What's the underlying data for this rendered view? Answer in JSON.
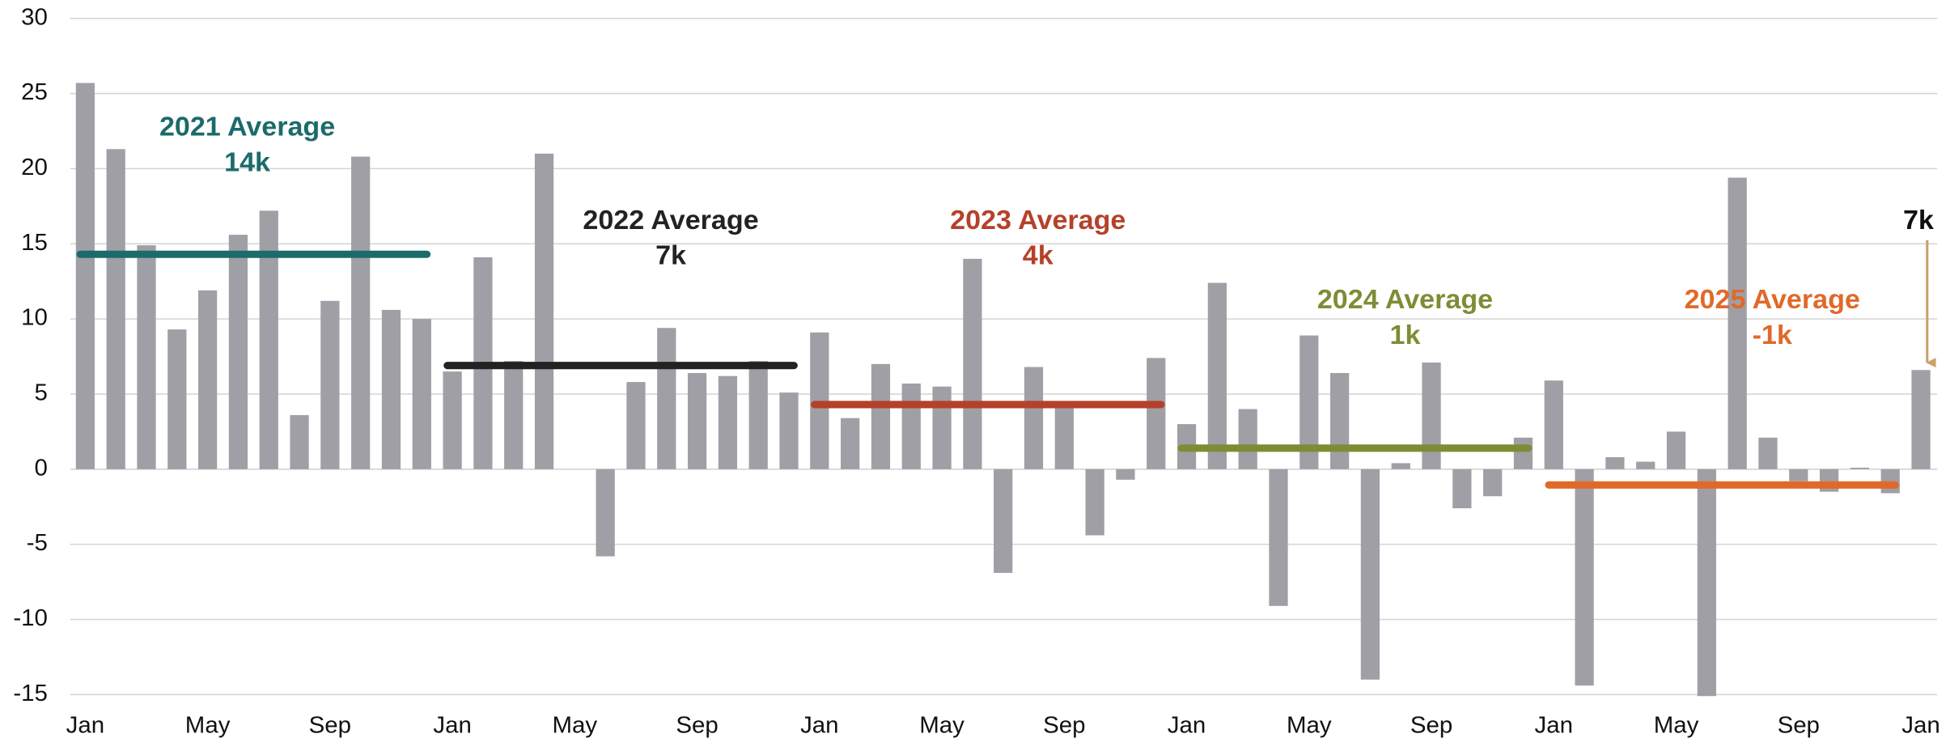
{
  "chart_data": {
    "type": "bar",
    "categories": [
      "Jan",
      null,
      null,
      null,
      "May",
      null,
      null,
      null,
      "Sep",
      null,
      null,
      null,
      "Jan",
      null,
      null,
      null,
      "May",
      null,
      null,
      null,
      "Sep",
      null,
      null,
      null,
      "Jan",
      null,
      null,
      null,
      "May",
      null,
      null,
      null,
      "Sep",
      null,
      null,
      null,
      "Jan",
      null,
      null,
      null,
      "May",
      null,
      null,
      null,
      "Sep",
      null,
      null,
      null,
      "Jan",
      null,
      null,
      null,
      "May",
      null,
      null,
      null,
      "Sep",
      null,
      null,
      null,
      "Jan"
    ],
    "values": [
      25.7,
      21.3,
      14.9,
      9.3,
      11.9,
      15.6,
      17.2,
      3.6,
      11.2,
      20.8,
      10.6,
      10.0,
      6.5,
      14.1,
      7.2,
      21.0,
      0,
      -5.8,
      5.8,
      9.4,
      6.4,
      6.2,
      7.2,
      5.1,
      9.1,
      3.4,
      7.0,
      5.7,
      5.5,
      14.0,
      -6.9,
      6.8,
      4.3,
      -4.4,
      -0.7,
      7.4,
      3.0,
      12.4,
      4.0,
      -9.1,
      8.9,
      6.4,
      -14.0,
      0.4,
      7.1,
      -2.6,
      -1.8,
      2.1,
      5.9,
      -14.4,
      0.8,
      0.5,
      2.5,
      -15.1,
      19.4,
      2.1,
      -0.8,
      -1.5,
      0.1,
      -1.6,
      6.6
    ],
    "color": "#a09fa6",
    "ylim": [
      -15,
      30
    ],
    "yticks": [
      -15,
      -10,
      -5,
      0,
      5,
      10,
      15,
      20,
      25,
      30
    ],
    "grid": true,
    "averages": [
      {
        "label": "2021 Average",
        "value": 14.3,
        "value_label": "14k",
        "color": "#1b6b6a"
      },
      {
        "label": "2022 Average",
        "value": 6.9,
        "value_label": "7k",
        "color": "#222222"
      },
      {
        "label": "2023 Average",
        "value": 4.3,
        "value_label": "4k",
        "color": "#b5412a"
      },
      {
        "label": "2024 Average",
        "value": 1.4,
        "value_label": "1k",
        "color": "#7f8c35"
      },
      {
        "label": "2025 Average",
        "value": -1.05,
        "value_label": "-1k",
        "color": "#e0692a"
      }
    ],
    "annotation": "7k"
  }
}
